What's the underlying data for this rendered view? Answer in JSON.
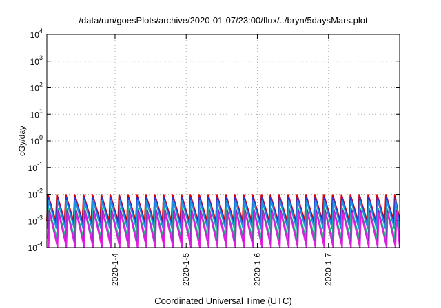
{
  "chart_data": {
    "type": "line",
    "title": "/data/run/goesPlots/archive/2020-01-07/23:00/flux/../bryn/5daysMars.plot",
    "xlabel": "Coordinated Universal Time (UTC)",
    "ylabel": "cGy/day",
    "y_scale": "log",
    "ylim": [
      0.0001,
      10000
    ],
    "xlim": [
      "2020-01-03T01:00",
      "2020-01-08T00:00"
    ],
    "grid": true,
    "legend": "none",
    "x_ticks": [
      "2020-1-4",
      "2020-1-5",
      "2020-1-6",
      "2020-1-7"
    ],
    "y_ticks": [
      {
        "base": "10",
        "exp": "-4"
      },
      {
        "base": "10",
        "exp": "-3"
      },
      {
        "base": "10",
        "exp": "-2"
      },
      {
        "base": "10",
        "exp": "-1"
      },
      {
        "base": "10",
        "exp": "0"
      },
      {
        "base": "10",
        "exp": "1"
      },
      {
        "base": "10",
        "exp": "2"
      },
      {
        "base": "10",
        "exp": "3"
      },
      {
        "base": "10",
        "exp": "4"
      }
    ],
    "sawtooth_period_hours": 3,
    "series": [
      {
        "color": "#e00000",
        "peak": 0.01,
        "trough": 0.001
      },
      {
        "color": "#3030d0",
        "peak": 0.008,
        "trough": 0.0007
      },
      {
        "color": "#2090e0",
        "peak": 0.006,
        "trough": 0.0005
      },
      {
        "color": "#20c080",
        "peak": 0.003,
        "trough": 0.00022
      },
      {
        "color": "#8020c0",
        "peak": 0.0025,
        "trough": 0.00012
      },
      {
        "color": "#e020e0",
        "peak": 0.002,
        "trough": 8e-05
      }
    ]
  }
}
